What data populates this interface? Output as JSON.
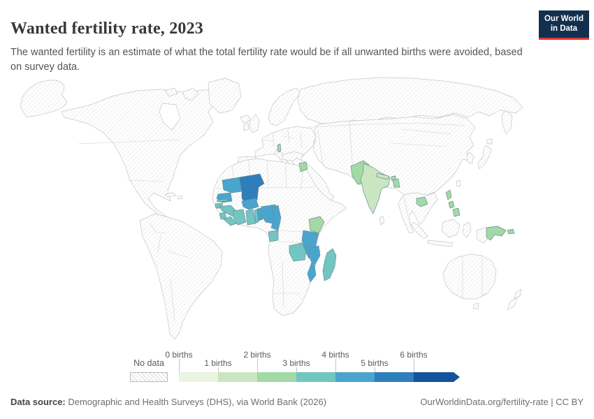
{
  "header": {
    "title": "Wanted fertility rate, 2023",
    "subtitle": "The wanted fertility is an estimate of what the total fertility rate would be if all unwanted births were avoided, based on survey data.",
    "logo": {
      "line1": "Our World",
      "line2": "in Data"
    }
  },
  "legend": {
    "no_data_label": "No data",
    "tick_labels": [
      "0 births",
      "1 births",
      "2 births",
      "3 births",
      "4 births",
      "5 births",
      "6 births"
    ],
    "bucket_colors": [
      "#e9f4e3",
      "#c9e6c0",
      "#a2d9a4",
      "#71c6c1",
      "#4aa5ce",
      "#2e7ebb",
      "#15539b"
    ]
  },
  "footer": {
    "source_label": "Data source:",
    "source_text": " Demographic and Health Surveys (DHS), via World Bank (2026)",
    "citation": "OurWorldinData.org/fertility-rate | CC BY"
  },
  "colors": {
    "logo_bg": "#12304e",
    "logo_accent": "#e0373c",
    "hatch_line": "#dcdcdc",
    "land_border": "#c6c6c6",
    "country_border": "#6d8d9b"
  },
  "chart_data": {
    "type": "heatmap",
    "subtype": "world-choropleth",
    "title": "Wanted fertility rate, 2023",
    "unit": "births",
    "legend_buckets": [
      {
        "range": "0-1 births",
        "color": "#e9f4e3"
      },
      {
        "range": "1-2 births",
        "color": "#c9e6c0"
      },
      {
        "range": "2-3 births",
        "color": "#a2d9a4"
      },
      {
        "range": "3-4 births",
        "color": "#71c6c1"
      },
      {
        "range": "4-5 births",
        "color": "#4aa5ce"
      },
      {
        "range": "5-6 births",
        "color": "#2e7ebb"
      },
      {
        "range": "6+ births",
        "color": "#15539b"
      }
    ],
    "no_data": "All hatched countries (Americas, Europe, most of Asia, Oceania) have no data",
    "countries": [
      {
        "id": "mali",
        "name": "Mali",
        "bucket": "5-6 births",
        "color": "#2e7ebb"
      },
      {
        "id": "mauritania",
        "name": "Mauritania",
        "bucket": "4-5 births",
        "color": "#4aa5ce"
      },
      {
        "id": "senegal",
        "name": "Senegal",
        "bucket": "4-5 births",
        "color": "#4aa5ce"
      },
      {
        "id": "burkina-faso",
        "name": "Burkina Faso",
        "bucket": "4-5 births",
        "color": "#4aa5ce"
      },
      {
        "id": "benin",
        "name": "Benin",
        "bucket": "4-5 births",
        "color": "#4aa5ce"
      },
      {
        "id": "nigeria",
        "name": "Nigeria",
        "bucket": "4-5 births",
        "color": "#4aa5ce"
      },
      {
        "id": "cameroon",
        "name": "Cameroon",
        "bucket": "4-5 births",
        "color": "#4aa5ce"
      },
      {
        "id": "tanzania",
        "name": "Tanzania",
        "bucket": "4-5 births",
        "color": "#4aa5ce"
      },
      {
        "id": "malawi",
        "name": "Malawi",
        "bucket": "4-5 births",
        "color": "#4aa5ce"
      },
      {
        "id": "mozambique",
        "name": "Mozambique",
        "bucket": "4-5 births",
        "color": "#4aa5ce"
      },
      {
        "id": "gambia",
        "name": "Gambia",
        "bucket": "3-4 births",
        "color": "#71c6c1"
      },
      {
        "id": "guinea-bissau",
        "name": "Guinea-Bissau",
        "bucket": "3-4 births",
        "color": "#71c6c1"
      },
      {
        "id": "guinea",
        "name": "Guinea",
        "bucket": "3-4 births",
        "color": "#71c6c1"
      },
      {
        "id": "sierra-leone",
        "name": "Sierra Leone",
        "bucket": "3-4 births",
        "color": "#71c6c1"
      },
      {
        "id": "liberia",
        "name": "Liberia",
        "bucket": "3-4 births",
        "color": "#71c6c1"
      },
      {
        "id": "cote-divoire",
        "name": "Côte d'Ivoire",
        "bucket": "3-4 births",
        "color": "#71c6c1"
      },
      {
        "id": "ghana",
        "name": "Ghana",
        "bucket": "3-4 births",
        "color": "#71c6c1"
      },
      {
        "id": "togo",
        "name": "Togo",
        "bucket": "3-4 births",
        "color": "#71c6c1"
      },
      {
        "id": "gabon",
        "name": "Gabon",
        "bucket": "3-4 births",
        "color": "#71c6c1"
      },
      {
        "id": "zambia",
        "name": "Zambia",
        "bucket": "3-4 births",
        "color": "#71c6c1"
      },
      {
        "id": "madagascar",
        "name": "Madagascar",
        "bucket": "3-4 births",
        "color": "#71c6c1"
      },
      {
        "id": "kenya",
        "name": "Kenya",
        "bucket": "2-3 births",
        "color": "#a2d9a4"
      },
      {
        "id": "jordan",
        "name": "Jordan",
        "bucket": "2-3 births",
        "color": "#a2d9a4"
      },
      {
        "id": "albania",
        "name": "Albania",
        "bucket": "2-3 births",
        "color": "#a2d9a4"
      },
      {
        "id": "pakistan",
        "name": "Pakistan",
        "bucket": "2-3 births",
        "color": "#a2d9a4"
      },
      {
        "id": "bhutan",
        "name": "Bhutan",
        "bucket": "2-3 births",
        "color": "#a2d9a4"
      },
      {
        "id": "bangladesh",
        "name": "Bangladesh",
        "bucket": "2-3 births",
        "color": "#a2d9a4"
      },
      {
        "id": "cambodia",
        "name": "Cambodia",
        "bucket": "2-3 births",
        "color": "#a2d9a4"
      },
      {
        "id": "philippines",
        "name": "Philippines",
        "bucket": "2-3 births",
        "color": "#a2d9a4"
      },
      {
        "id": "papua-new-guinea",
        "name": "Papua New Guinea",
        "bucket": "2-3 births",
        "color": "#a2d9a4"
      },
      {
        "id": "india",
        "name": "India",
        "bucket": "1-2 births",
        "color": "#c9e6c0"
      },
      {
        "id": "nepal",
        "name": "Nepal",
        "bucket": "1-2 births",
        "color": "#c9e6c0"
      }
    ]
  }
}
